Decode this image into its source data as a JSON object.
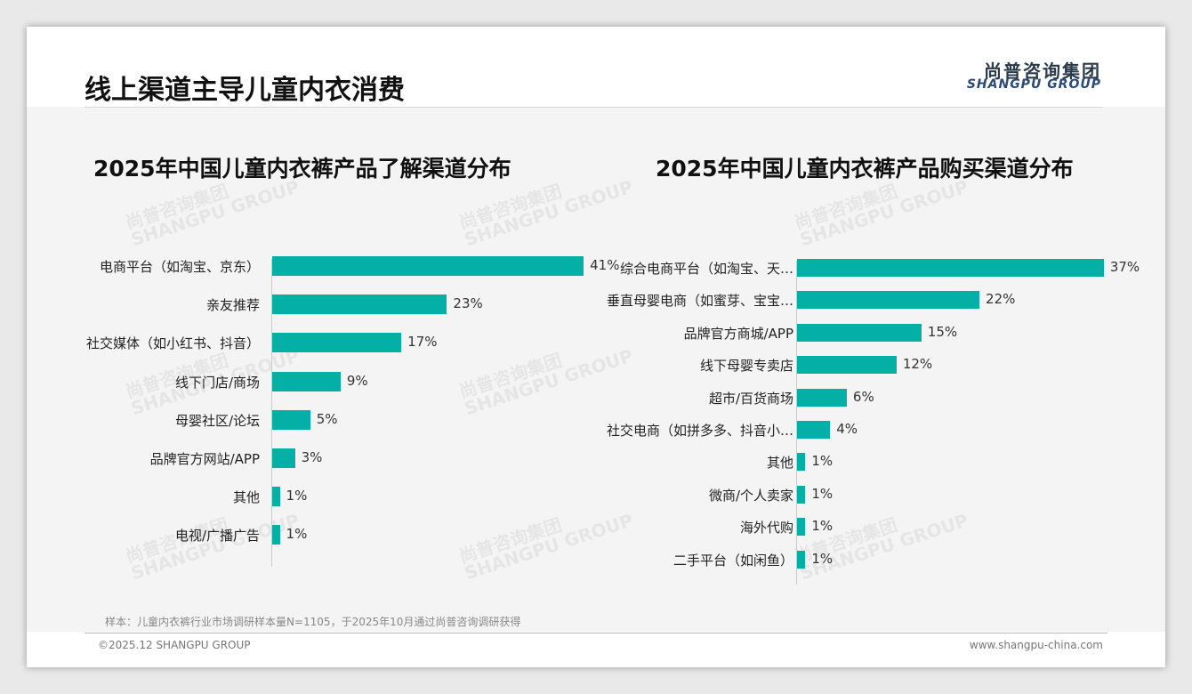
{
  "header": {
    "title": "线上渠道主导儿童内衣消费",
    "logo_cn": "尚普咨询集团",
    "logo_en": "SHANGPU GROUP"
  },
  "footer": {
    "note": "样本：儿童内衣裤行业市场调研样本量N=1105，于2025年10月通过尚普咨询调研获得",
    "copyright": "©2025.12 SHANGPU GROUP",
    "site": "www.shangpu-china.com"
  },
  "colors": {
    "bar": "#04b0a6",
    "arrow": "#fdd26e"
  },
  "chart_data": [
    {
      "type": "bar",
      "orientation": "horizontal",
      "title": "2025年中国儿童内衣裤产品了解渠道分布",
      "categories": [
        "电商平台（如淘宝、京东）",
        "亲友推荐",
        "社交媒体（如小红书、抖音）",
        "线下门店/商场",
        "母婴社区/论坛",
        "品牌官方网站/APP",
        "其他",
        "电视/广播广告"
      ],
      "values": [
        41,
        23,
        17,
        9,
        5,
        3,
        1,
        1
      ],
      "labels": [
        "41%",
        "23%",
        "17%",
        "9%",
        "5%",
        "3%",
        "1%",
        "1%"
      ]
    },
    {
      "type": "bar",
      "orientation": "horizontal",
      "title": "2025年中国儿童内衣裤产品购买渠道分布",
      "categories": [
        "综合电商平台（如淘宝、天…",
        "垂直母婴电商（如蜜芽、宝宝…",
        "品牌官方商城/APP",
        "线下母婴专卖店",
        "超市/百货商场",
        "社交电商（如拼多多、抖音小…",
        "其他",
        "微商/个人卖家",
        "海外代购",
        "二手平台（如闲鱼）"
      ],
      "values": [
        37,
        22,
        15,
        12,
        6,
        4,
        1,
        1,
        1,
        1
      ],
      "labels": [
        "37%",
        "22%",
        "15%",
        "12%",
        "6%",
        "4%",
        "1%",
        "1%",
        "1%",
        "1%"
      ]
    }
  ]
}
